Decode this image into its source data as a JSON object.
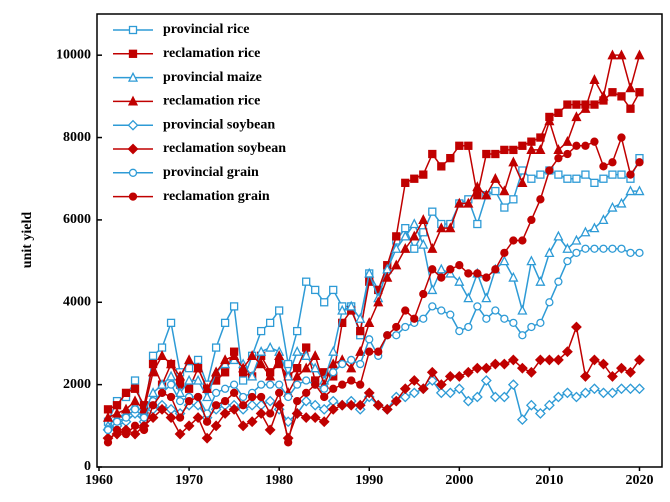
{
  "chart_data": {
    "type": "line",
    "ylabel": "unit yield",
    "x": [
      1961,
      1962,
      1963,
      1964,
      1965,
      1966,
      1967,
      1968,
      1969,
      1970,
      1971,
      1972,
      1973,
      1974,
      1975,
      1976,
      1977,
      1978,
      1979,
      1980,
      1981,
      1982,
      1983,
      1984,
      1985,
      1986,
      1987,
      1988,
      1989,
      1990,
      1991,
      1992,
      1993,
      1994,
      1995,
      1996,
      1997,
      1998,
      1999,
      2000,
      2001,
      2002,
      2003,
      2004,
      2005,
      2006,
      2007,
      2008,
      2009,
      2010,
      2011,
      2012,
      2013,
      2014,
      2015,
      2016,
      2017,
      2018,
      2019,
      2020
    ],
    "xlim": [
      1960,
      2022.5
    ],
    "xticks": [
      1960,
      1970,
      1980,
      1990,
      2000,
      2010,
      2020
    ],
    "ylim": [
      0,
      11000
    ],
    "yticks": [
      0,
      2000,
      4000,
      6000,
      8000,
      10000
    ],
    "legend": "upper left",
    "series": [
      {
        "name": "provincial rice",
        "color": "#2e9bd6",
        "marker": "square",
        "filled": false,
        "values": [
          1100,
          1600,
          1700,
          2100,
          1300,
          2700,
          2900,
          3500,
          2300,
          2400,
          2600,
          2000,
          2900,
          3500,
          3900,
          2100,
          2700,
          3300,
          3500,
          3800,
          2500,
          3300,
          4500,
          4300,
          4000,
          4300,
          3900,
          3900,
          3200,
          4700,
          4300,
          4800,
          5500,
          5800,
          5300,
          5700,
          6200,
          5900,
          5900,
          6400,
          6500,
          5900,
          6600,
          6700,
          6300,
          6500,
          7200,
          7000,
          7100,
          7200,
          7100,
          7000,
          7000,
          7100,
          6900,
          7000,
          7100,
          7100,
          7000,
          7500
        ]
      },
      {
        "name": "reclamation rice",
        "color": "#c00000",
        "marker": "square",
        "filled": true,
        "values": [
          1400,
          1500,
          1800,
          1900,
          1500,
          2500,
          2000,
          2500,
          2000,
          1900,
          2400,
          1900,
          2100,
          2300,
          2800,
          2300,
          2200,
          2700,
          2300,
          2500,
          2200,
          2400,
          2900,
          2100,
          2300,
          2200,
          3500,
          3800,
          3300,
          4500,
          4300,
          4900,
          5600,
          6900,
          7000,
          7100,
          7600,
          7300,
          7500,
          7800,
          7800,
          6600,
          7600,
          7600,
          7700,
          7700,
          7800,
          7900,
          8000,
          8500,
          8600,
          8800,
          8800,
          8800,
          8800,
          8900,
          9100,
          9000,
          8700,
          9100
        ]
      },
      {
        "name": "provincial maize",
        "color": "#2e9bd6",
        "marker": "triangle",
        "filled": false,
        "values": [
          1000,
          1200,
          1300,
          1500,
          1300,
          1800,
          2000,
          2200,
          1800,
          2100,
          2100,
          1700,
          2300,
          2500,
          2600,
          2500,
          2200,
          2800,
          2900,
          2800,
          2200,
          2800,
          2700,
          2400,
          2100,
          2800,
          3800,
          3900,
          3600,
          4700,
          4100,
          4800,
          5300,
          5600,
          5900,
          5400,
          4300,
          4800,
          4700,
          4500,
          4100,
          4700,
          4100,
          4800,
          5000,
          4600,
          3800,
          5000,
          4500,
          5200,
          5600,
          5300,
          5500,
          5700,
          5800,
          6000,
          6300,
          6400,
          6700,
          6700
        ]
      },
      {
        "name": "reclamation rice",
        "color": "#c00000",
        "marker": "triangle",
        "filled": true,
        "values": [
          1200,
          1300,
          1400,
          1600,
          1400,
          2300,
          2700,
          2500,
          2200,
          2600,
          2400,
          1900,
          2300,
          2600,
          2700,
          2400,
          2700,
          2500,
          2200,
          2700,
          1800,
          2200,
          2400,
          2700,
          2000,
          2500,
          2600,
          2400,
          2800,
          3500,
          4000,
          4600,
          4900,
          5300,
          5600,
          6000,
          5300,
          5800,
          5800,
          6400,
          6400,
          6800,
          6600,
          7000,
          6700,
          7400,
          6900,
          7700,
          7700,
          8400,
          7700,
          7900,
          8500,
          8700,
          9400,
          9000,
          10000,
          10000,
          9200,
          10000
        ]
      },
      {
        "name": "provincial soybean",
        "color": "#2e9bd6",
        "marker": "diamond",
        "filled": false,
        "values": [
          900,
          1000,
          1100,
          1300,
          1100,
          1400,
          1500,
          1400,
          1300,
          1500,
          1500,
          1200,
          1400,
          1500,
          1500,
          1400,
          1500,
          1500,
          1600,
          1400,
          1100,
          1300,
          1600,
          1500,
          1400,
          1600,
          1500,
          1600,
          1400,
          1700,
          1500,
          1400,
          1700,
          1700,
          1800,
          1900,
          2100,
          1800,
          1800,
          1900,
          1600,
          1700,
          2100,
          1700,
          1700,
          2000,
          1150,
          1500,
          1300,
          1500,
          1700,
          1800,
          1700,
          1800,
          1900,
          1800,
          1800,
          1900,
          1900,
          1900
        ]
      },
      {
        "name": "reclamation soybean",
        "color": "#c00000",
        "marker": "diamond",
        "filled": true,
        "values": [
          700,
          800,
          900,
          800,
          1000,
          1200,
          1400,
          1200,
          800,
          1000,
          1200,
          700,
          1000,
          1300,
          1400,
          1000,
          1100,
          1300,
          900,
          1500,
          700,
          1300,
          1200,
          1200,
          1100,
          1400,
          1500,
          1500,
          1500,
          1800,
          1500,
          1400,
          1600,
          1900,
          2100,
          1900,
          2300,
          2000,
          2200,
          2200,
          2300,
          2400,
          2400,
          2500,
          2500,
          2600,
          2400,
          2300,
          2600,
          2600,
          2600,
          2800,
          3400,
          2200,
          2600,
          2500,
          2200,
          2400,
          2300,
          2600
        ]
      },
      {
        "name": "provincial grain",
        "color": "#2e9bd6",
        "marker": "circle",
        "filled": false,
        "values": [
          900,
          1100,
          1200,
          1400,
          1200,
          1600,
          1800,
          2000,
          1600,
          1700,
          1700,
          1300,
          1800,
          1900,
          2000,
          1700,
          1800,
          2000,
          2000,
          2000,
          1700,
          2000,
          2100,
          2000,
          1900,
          2300,
          2500,
          2600,
          2500,
          3100,
          2700,
          3200,
          3200,
          3400,
          3500,
          3600,
          3900,
          3800,
          3700,
          3300,
          3400,
          3900,
          3600,
          3800,
          3600,
          3500,
          3200,
          3400,
          3500,
          4000,
          4500,
          5000,
          5200,
          5300,
          5300,
          5300,
          5300,
          5300,
          5200,
          5200
        ]
      },
      {
        "name": "reclamation grain",
        "color": "#c00000",
        "marker": "circle",
        "filled": true,
        "values": [
          600,
          900,
          800,
          1000,
          900,
          1500,
          1800,
          1700,
          1200,
          1600,
          1700,
          1100,
          1500,
          1600,
          1800,
          1500,
          1700,
          1700,
          1300,
          1800,
          600,
          1600,
          1800,
          2000,
          1700,
          1900,
          2000,
          2100,
          2000,
          2800,
          2800,
          3200,
          3400,
          3800,
          3600,
          4200,
          4800,
          4600,
          4800,
          4900,
          4700,
          4700,
          4600,
          4800,
          5200,
          5500,
          5500,
          6000,
          6500,
          7200,
          7500,
          7600,
          7800,
          7800,
          7900,
          7300,
          7400,
          8000,
          7100,
          7400
        ]
      }
    ]
  }
}
